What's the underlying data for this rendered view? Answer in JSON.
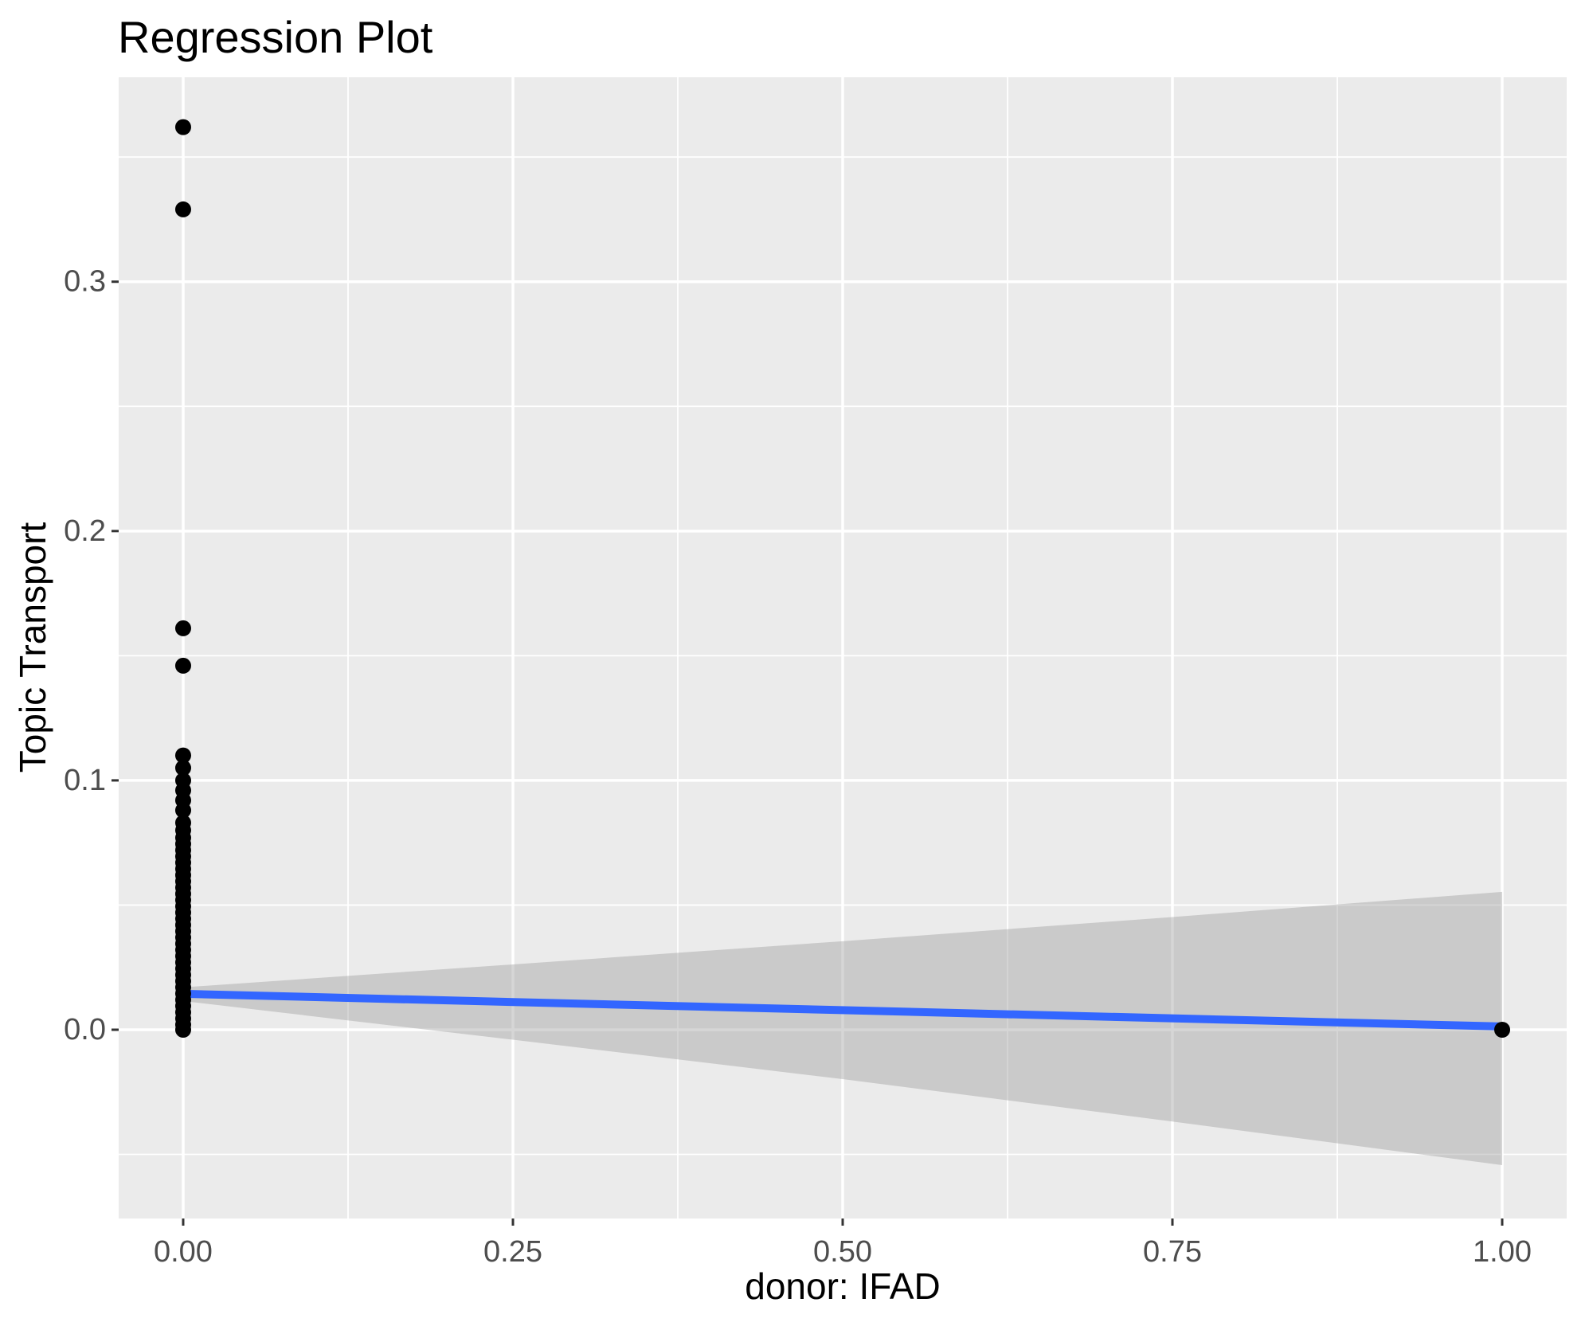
{
  "chart_data": {
    "type": "scatter",
    "title": "Regression Plot",
    "xlabel": "donor: IFAD",
    "ylabel": "Topic Transport",
    "xlim": [
      -0.0489,
      1.0489
    ],
    "ylim": [
      -0.0757,
      0.382
    ],
    "grid": "on",
    "legend": "none",
    "x_ticks": {
      "values": [
        0,
        0.25,
        0.5,
        0.75,
        1.0
      ],
      "labels": [
        "0.00",
        "0.25",
        "0.50",
        "0.75",
        "1.00"
      ]
    },
    "y_ticks": {
      "values": [
        0,
        0.1,
        0.2,
        0.3
      ],
      "labels": [
        "0.0",
        "0.1",
        "0.2",
        "0.3"
      ]
    },
    "x_minor_ticks": [
      0.125,
      0.375,
      0.625,
      0.875
    ],
    "y_minor_ticks": [
      -0.05,
      0.05,
      0.15,
      0.25,
      0.35
    ],
    "colors": {
      "panel_background": "#EBEBEB",
      "plot_background": "#FFFFFF",
      "gridline": "#FFFFFF",
      "tick_mark": "#333333",
      "tick_label": "#4D4D4D",
      "point": "#000000",
      "regression_line": "#3366FF",
      "confidence_band": "rgba(153,153,153,0.4)"
    },
    "series": [
      {
        "name": "observations",
        "type": "points",
        "point_radius": 10,
        "points": [
          [
            0,
            0.362
          ],
          [
            0,
            0.329
          ],
          [
            0,
            0.161
          ],
          [
            0,
            0.146
          ],
          [
            0,
            0.11
          ],
          [
            0,
            0.105
          ],
          [
            0,
            0.1
          ],
          [
            0,
            0.096
          ],
          [
            0,
            0.092
          ],
          [
            0,
            0.088
          ],
          [
            0,
            0.083
          ],
          [
            0,
            0.08
          ],
          [
            0,
            0.077
          ],
          [
            0,
            0.0745
          ],
          [
            0,
            0.072
          ],
          [
            0,
            0.0695
          ],
          [
            0,
            0.067
          ],
          [
            0,
            0.0645
          ],
          [
            0,
            0.062
          ],
          [
            0,
            0.0595
          ],
          [
            0,
            0.057
          ],
          [
            0,
            0.0545
          ],
          [
            0,
            0.052
          ],
          [
            0,
            0.0495
          ],
          [
            0,
            0.047
          ],
          [
            0,
            0.0445
          ],
          [
            0,
            0.042
          ],
          [
            0,
            0.0395
          ],
          [
            0,
            0.037
          ],
          [
            0,
            0.0345
          ],
          [
            0,
            0.032
          ],
          [
            0,
            0.0295
          ],
          [
            0,
            0.027
          ],
          [
            0,
            0.0245
          ],
          [
            0,
            0.022
          ],
          [
            0,
            0.0195
          ],
          [
            0,
            0.017
          ],
          [
            0,
            0.0145
          ],
          [
            0,
            0.012
          ],
          [
            0,
            0.0095
          ],
          [
            0,
            0.007
          ],
          [
            0,
            0.0045
          ],
          [
            0,
            0.002
          ],
          [
            0,
            0.0
          ],
          [
            1,
            0.0
          ]
        ]
      },
      {
        "name": "regression-line",
        "type": "line",
        "stroke_width": 10,
        "points": [
          [
            0,
            0.0144
          ],
          [
            1,
            0.0013
          ]
        ]
      },
      {
        "name": "confidence-band",
        "type": "area",
        "upper": [
          [
            0,
            0.017
          ],
          [
            0.25,
            0.0262
          ],
          [
            0.5,
            0.0355
          ],
          [
            0.75,
            0.0452
          ],
          [
            1,
            0.0553
          ]
        ],
        "lower": [
          [
            0,
            0.0115
          ],
          [
            0.25,
            -0.004
          ],
          [
            0.5,
            -0.0198
          ],
          [
            0.75,
            -0.0368
          ],
          [
            1,
            -0.0543
          ]
        ]
      }
    ]
  }
}
